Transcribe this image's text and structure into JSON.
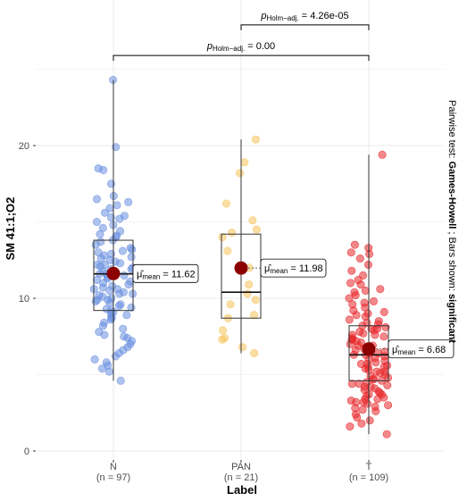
{
  "chart_data": {
    "type": "box-violin-scatter",
    "xlabel": "Label",
    "ylabel": "SM 41:1;O2",
    "ylim": [
      0,
      25
    ],
    "yticks": [
      0,
      10,
      20
    ],
    "grid": true,
    "side_note": {
      "prefix": "Pairwise test: ",
      "test": "Games-Howell",
      "middle": " ; Bars shown: ",
      "which": "significant"
    },
    "groups": [
      {
        "name": "N",
        "n_label": "(n = 97)",
        "n": 97,
        "color": "#6a8fe0",
        "box": {
          "q1": 9.2,
          "median": 11.6,
          "q3": 13.8,
          "whisker_low": 4.6,
          "whisker_high": 24.3
        },
        "mean": 11.62,
        "mean_label_prefix": "μ̂",
        "mean_label_sub": "mean",
        "mean_label_value": "= 11.62",
        "points": [
          24.3,
          19.9,
          18.5,
          18.4,
          17.5,
          16.7,
          16.5,
          16.3,
          16.1,
          15.9,
          15.6,
          15.4,
          15.2,
          15.0,
          14.8,
          14.6,
          14.4,
          14.2,
          14.0,
          13.8,
          13.7,
          13.5,
          13.3,
          13.2,
          13.0,
          12.9,
          12.7,
          12.6,
          12.5,
          12.4,
          12.3,
          12.2,
          12.1,
          12.0,
          11.9,
          11.8,
          11.7,
          11.6,
          11.6,
          11.5,
          11.4,
          11.3,
          11.2,
          11.1,
          11.0,
          10.9,
          10.8,
          10.7,
          10.6,
          10.5,
          10.4,
          10.3,
          10.2,
          10.1,
          10.0,
          9.9,
          9.8,
          9.7,
          9.6,
          9.5,
          9.4,
          9.3,
          9.2,
          9.1,
          9.0,
          8.9,
          8.8,
          8.6,
          8.4,
          8.2,
          8.0,
          7.8,
          7.6,
          7.5,
          7.4,
          7.2,
          7.0,
          6.8,
          6.6,
          6.4,
          6.2,
          6.0,
          5.8,
          5.6,
          5.4,
          5.2,
          4.6,
          13.1,
          12.8,
          11.9,
          10.6,
          9.9,
          14.1,
          15.3,
          12.2,
          10.3,
          8.7
        ]
      },
      {
        "name": "PAN",
        "n_label": "(n = 21)",
        "n": 21,
        "color": "#f5c35a",
        "box": {
          "q1": 8.7,
          "median": 10.4,
          "q3": 14.2,
          "whisker_low": 6.4,
          "whisker_high": 20.4
        },
        "mean": 11.98,
        "mean_label_prefix": "μ̂",
        "mean_label_sub": "mean",
        "mean_label_value": "= 11.98",
        "points": [
          20.4,
          18.9,
          18.2,
          16.2,
          15.1,
          14.5,
          14.3,
          14.0,
          13.1,
          12.0,
          10.9,
          10.3,
          9.9,
          9.6,
          8.9,
          8.7,
          7.9,
          7.4,
          7.3,
          6.8,
          6.4
        ]
      },
      {
        "name": "T",
        "n_label": "(n = 109)",
        "n": 109,
        "color": "#e8262a",
        "box": {
          "q1": 4.6,
          "median": 6.3,
          "q3": 8.2,
          "whisker_low": 1.1,
          "whisker_high": 19.4
        },
        "mean": 6.68,
        "mean_label_prefix": "μ̂",
        "mean_label_sub": "mean",
        "mean_label_value": "= 6.68",
        "points": [
          19.4,
          13.5,
          13.3,
          13.0,
          12.6,
          12.2,
          11.8,
          11.5,
          11.2,
          10.9,
          10.6,
          10.4,
          10.2,
          10.0,
          9.8,
          9.6,
          9.4,
          9.2,
          9.0,
          8.8,
          8.6,
          8.5,
          8.4,
          8.3,
          8.2,
          8.1,
          8.0,
          7.9,
          7.8,
          7.7,
          7.6,
          7.5,
          7.4,
          7.3,
          7.2,
          7.1,
          7.0,
          6.9,
          6.8,
          6.7,
          6.6,
          6.5,
          6.4,
          6.3,
          6.3,
          6.2,
          6.1,
          6.0,
          5.9,
          5.8,
          5.7,
          5.6,
          5.5,
          5.4,
          5.3,
          5.2,
          5.1,
          5.0,
          4.9,
          4.8,
          4.7,
          4.6,
          4.5,
          4.4,
          4.3,
          4.2,
          4.1,
          4.0,
          3.9,
          3.8,
          3.7,
          3.6,
          3.5,
          3.4,
          3.3,
          3.2,
          3.1,
          3.0,
          2.9,
          2.8,
          2.6,
          2.4,
          2.2,
          2.0,
          1.8,
          1.6,
          1.1,
          12.9,
          11.0,
          9.7,
          8.9,
          7.6,
          6.9,
          6.4,
          5.7,
          5.2,
          4.7,
          4.2,
          3.7,
          3.2,
          2.7,
          10.5,
          9.1,
          8.0,
          7.3,
          6.6,
          5.5,
          4.4,
          3.4
        ]
      }
    ],
    "comparisons": [
      {
        "from": "N",
        "to": "T",
        "label_p": "p",
        "label_sub": "Holm−adj.",
        "label_value": "= 0.00",
        "y": 25.9
      },
      {
        "from": "PAN",
        "to": "T",
        "label_p": "p",
        "label_sub": "Holm−adj.",
        "label_value": "= 4.26e-05",
        "y": 27.9
      }
    ],
    "mean_marker_color": "#8b0000"
  }
}
